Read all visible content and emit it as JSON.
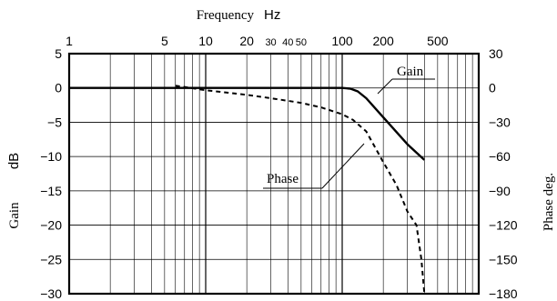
{
  "chart_data": {
    "type": "line",
    "x_scale": "log",
    "xlim": [
      1,
      1000
    ],
    "grid": true,
    "xlabel_word": "Frequency",
    "xlabel_unit": "Hz",
    "ylabel_left_word": "Gain",
    "ylabel_left_unit": "dB",
    "ylabel_right": "Phase deg.",
    "ylim_left": [
      -30,
      5
    ],
    "ylim_right": [
      -180,
      30
    ],
    "x_ticks": [
      {
        "value": 1,
        "label": "1"
      },
      {
        "value": 5,
        "label": "5"
      },
      {
        "value": 10,
        "label": "10"
      },
      {
        "value": 20,
        "label": "20"
      },
      {
        "value": 30,
        "label": "30"
      },
      {
        "value": 40,
        "label": "40"
      },
      {
        "value": 50,
        "label": "50"
      },
      {
        "value": 100,
        "label": "100"
      },
      {
        "value": 200,
        "label": "200"
      },
      {
        "value": 500,
        "label": "500"
      }
    ],
    "y_left_ticks": [
      {
        "value": 5,
        "label": "5"
      },
      {
        "value": 0,
        "label": "0"
      },
      {
        "value": -5,
        "label": "−5"
      },
      {
        "value": -10,
        "label": "−10"
      },
      {
        "value": -15,
        "label": "−15"
      },
      {
        "value": -20,
        "label": "−20"
      },
      {
        "value": -25,
        "label": "−25"
      },
      {
        "value": -30,
        "label": "−30"
      }
    ],
    "y_right_ticks": [
      {
        "value": 30,
        "label": "30"
      },
      {
        "value": 0,
        "label": "0"
      },
      {
        "value": -30,
        "label": "−30"
      },
      {
        "value": -60,
        "label": "−60"
      },
      {
        "value": -90,
        "label": "−90"
      },
      {
        "value": -120,
        "label": "−120"
      },
      {
        "value": -150,
        "label": "−150"
      },
      {
        "value": -180,
        "label": "−180"
      }
    ],
    "series": [
      {
        "name": "Gain",
        "axis": "left",
        "style": "solid",
        "x": [
          1,
          10,
          100,
          115,
          130,
          150,
          200,
          300,
          400
        ],
        "y": [
          0,
          0,
          0,
          -0.1,
          -0.5,
          -1.5,
          -4.3,
          -8.2,
          -10.5
        ]
      },
      {
        "name": "Phase",
        "axis": "right",
        "style": "dashed",
        "x": [
          6,
          10,
          20,
          30,
          50,
          70,
          100,
          120,
          150,
          200,
          250,
          300,
          350,
          380,
          400
        ],
        "y": [
          2,
          -2,
          -6,
          -9,
          -13,
          -17,
          -23,
          -28,
          -38,
          -65,
          -85,
          -108,
          -120,
          -150,
          -192
        ]
      }
    ]
  }
}
